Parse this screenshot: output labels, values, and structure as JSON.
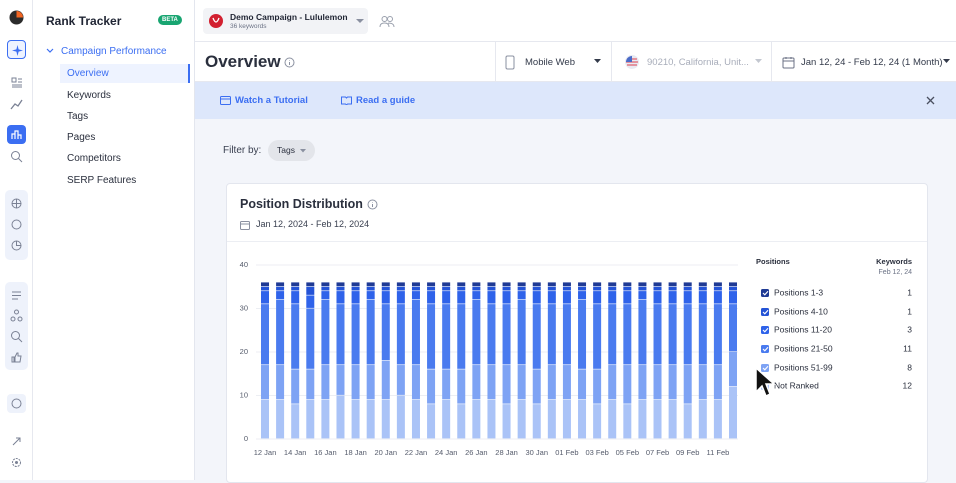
{
  "sidebar": {
    "title": "Rank Tracker",
    "badge": "BETA",
    "section": "Campaign Performance",
    "items": [
      "Overview",
      "Keywords",
      "Tags",
      "Pages",
      "Competitors",
      "SERP Features"
    ]
  },
  "campaign": {
    "name": "Demo Campaign - Lululemon",
    "keywords": "36 keywords"
  },
  "header": {
    "title": "Overview",
    "device": "Mobile Web",
    "location": "90210, California, Unit...",
    "date_range": "Jan 12, 24 - Feb 12, 24 (1 Month)"
  },
  "banner": {
    "tutorial": "Watch a Tutorial",
    "guide": "Read a guide"
  },
  "filter": {
    "label": "Filter by:",
    "chip": "Tags"
  },
  "card": {
    "title": "Position Distribution",
    "dates": "Jan 12, 2024 - Feb 12, 2024"
  },
  "chart_data": {
    "type": "stacked-bar",
    "legend_title": "Positions",
    "legend_value_title": "Keywords",
    "legend_date": "Feb 12, 24",
    "categories": [
      "12 Jan",
      null,
      "14 Jan",
      null,
      "16 Jan",
      null,
      "18 Jan",
      null,
      "20 Jan",
      null,
      "22 Jan",
      null,
      "24 Jan",
      null,
      "26 Jan",
      null,
      "28 Jan",
      null,
      "30 Jan",
      null,
      "01 Feb",
      null,
      "03 Feb",
      null,
      "05 Feb",
      null,
      "07 Feb",
      null,
      "09 Feb",
      null,
      "11 Feb",
      null
    ],
    "ylim": [
      0,
      40
    ],
    "yticks": [
      0,
      10,
      20,
      30,
      40
    ],
    "grid": true,
    "series": [
      {
        "name": "Positions 1-3",
        "color": "#1f3a94",
        "values": [
          1,
          1,
          1,
          1,
          1,
          1,
          1,
          1,
          1,
          1,
          1,
          1,
          1,
          1,
          1,
          1,
          1,
          1,
          1,
          1,
          1,
          1,
          1,
          1,
          1,
          1,
          1,
          1,
          1,
          1,
          1,
          1
        ]
      },
      {
        "name": "Positions 4-10",
        "color": "#2453d6",
        "values": [
          1,
          1,
          1,
          2,
          1,
          1,
          1,
          1,
          1,
          1,
          1,
          1,
          1,
          1,
          1,
          1,
          1,
          1,
          1,
          1,
          1,
          1,
          1,
          1,
          1,
          1,
          1,
          1,
          1,
          1,
          1,
          1
        ]
      },
      {
        "name": "Positions 11-20",
        "color": "#2f63ea",
        "values": [
          3,
          2,
          3,
          3,
          2,
          3,
          3,
          2,
          3,
          3,
          2,
          3,
          3,
          3,
          2,
          3,
          3,
          2,
          3,
          3,
          3,
          2,
          3,
          3,
          3,
          2,
          3,
          3,
          3,
          3,
          3,
          3
        ]
      },
      {
        "name": "Positions 21-50",
        "color": "#4a7bef",
        "values": [
          14,
          15,
          15,
          14,
          15,
          14,
          14,
          15,
          13,
          14,
          15,
          15,
          15,
          15,
          15,
          14,
          14,
          15,
          15,
          14,
          14,
          16,
          15,
          14,
          14,
          15,
          14,
          14,
          14,
          14,
          14,
          11
        ]
      },
      {
        "name": "Positions 51-99",
        "color": "#7ea3f4",
        "values": [
          8,
          8,
          8,
          7,
          8,
          7,
          8,
          8,
          9,
          7,
          8,
          8,
          7,
          8,
          8,
          8,
          9,
          8,
          8,
          8,
          8,
          7,
          8,
          8,
          9,
          8,
          8,
          8,
          9,
          8,
          8,
          8
        ]
      },
      {
        "name": "Not Ranked",
        "color": "#aac3f7",
        "values": [
          9,
          9,
          8,
          9,
          9,
          10,
          9,
          9,
          9,
          10,
          9,
          8,
          9,
          8,
          9,
          9,
          8,
          9,
          8,
          9,
          9,
          9,
          8,
          9,
          8,
          9,
          9,
          9,
          8,
          9,
          9,
          12
        ]
      }
    ]
  }
}
